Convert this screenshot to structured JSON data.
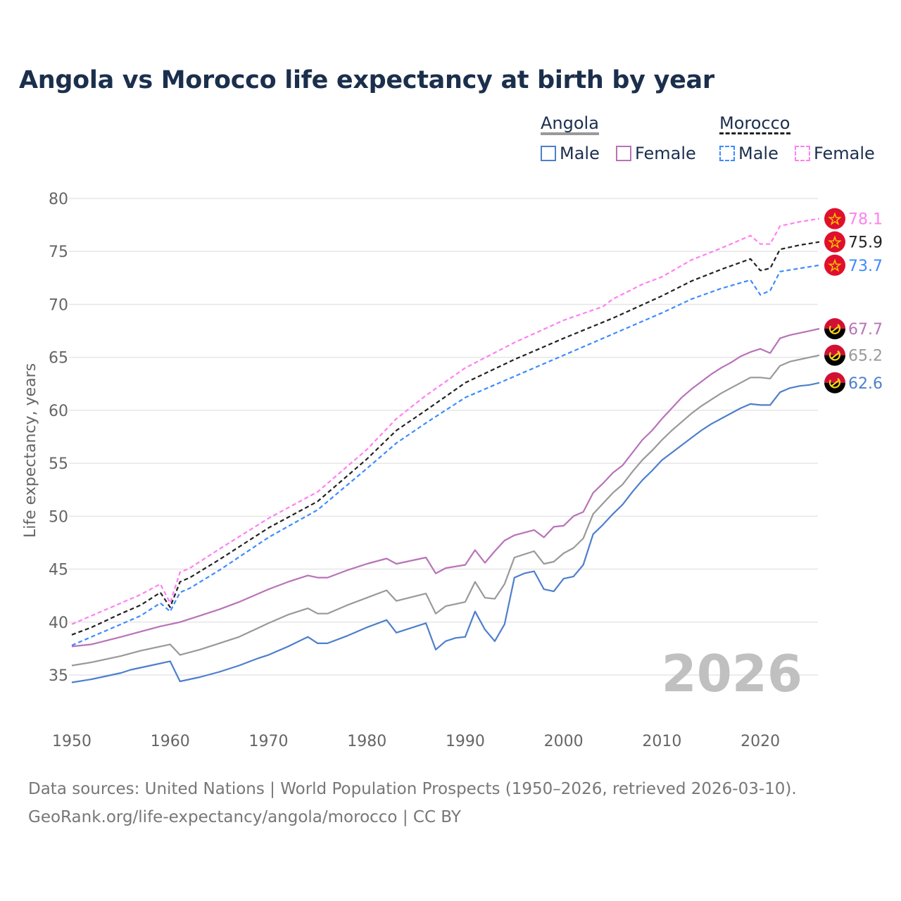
{
  "chart_data": {
    "type": "line",
    "title": "Angola vs Morocco life expectancy at birth by year",
    "xlabel": "",
    "ylabel": "Life expectancy, years",
    "xlim": [
      1950,
      2026
    ],
    "ylim": [
      32,
      82
    ],
    "xticks": [
      1950,
      1960,
      1970,
      1980,
      1990,
      2000,
      2010,
      2020
    ],
    "yticks": [
      35,
      40,
      45,
      50,
      55,
      60,
      65,
      70,
      75,
      80
    ],
    "grid": true,
    "year_watermark": "2026",
    "legend": {
      "groups": [
        {
          "country": "Angola",
          "items": [
            "Male",
            "Female"
          ]
        },
        {
          "country": "Morocco",
          "items": [
            "Male",
            "Female"
          ]
        }
      ],
      "placement": "top-right"
    },
    "series": [
      {
        "name": "Morocco Female",
        "country": "Morocco",
        "color": "#ff80f0",
        "dash": true,
        "end_label": "78.1",
        "flag": "morocco",
        "points": [
          [
            1950,
            39.8
          ],
          [
            1952,
            40.6
          ],
          [
            1955,
            41.8
          ],
          [
            1957,
            42.6
          ],
          [
            1959,
            43.6
          ],
          [
            1960,
            41.8
          ],
          [
            1961,
            44.7
          ],
          [
            1962,
            45.1
          ],
          [
            1965,
            46.9
          ],
          [
            1970,
            49.8
          ],
          [
            1975,
            52.3
          ],
          [
            1980,
            56.3
          ],
          [
            1983,
            59.2
          ],
          [
            1986,
            61.4
          ],
          [
            1990,
            64.0
          ],
          [
            1995,
            66.4
          ],
          [
            2000,
            68.5
          ],
          [
            2004,
            69.8
          ],
          [
            2005,
            70.5
          ],
          [
            2008,
            71.9
          ],
          [
            2010,
            72.6
          ],
          [
            2013,
            74.2
          ],
          [
            2016,
            75.3
          ],
          [
            2019,
            76.5
          ],
          [
            2020,
            75.7
          ],
          [
            2021,
            75.7
          ],
          [
            2022,
            77.4
          ],
          [
            2024,
            77.8
          ],
          [
            2026,
            78.1
          ]
        ]
      },
      {
        "name": "Morocco Total",
        "country": "Morocco",
        "color": "#222222",
        "dash": true,
        "end_label": "75.9",
        "flag": "morocco",
        "points": [
          [
            1950,
            38.8
          ],
          [
            1952,
            39.5
          ],
          [
            1955,
            40.8
          ],
          [
            1957,
            41.6
          ],
          [
            1959,
            42.8
          ],
          [
            1960,
            41.4
          ],
          [
            1961,
            43.8
          ],
          [
            1962,
            44.2
          ],
          [
            1965,
            45.9
          ],
          [
            1970,
            48.9
          ],
          [
            1975,
            51.4
          ],
          [
            1980,
            55.4
          ],
          [
            1983,
            58.1
          ],
          [
            1986,
            60.0
          ],
          [
            1990,
            62.6
          ],
          [
            1995,
            64.8
          ],
          [
            2000,
            66.8
          ],
          [
            2005,
            68.7
          ],
          [
            2010,
            70.8
          ],
          [
            2013,
            72.2
          ],
          [
            2016,
            73.3
          ],
          [
            2019,
            74.3
          ],
          [
            2020,
            73.2
          ],
          [
            2021,
            73.4
          ],
          [
            2022,
            75.2
          ],
          [
            2024,
            75.6
          ],
          [
            2026,
            75.9
          ]
        ]
      },
      {
        "name": "Morocco Male",
        "country": "Morocco",
        "color": "#3d8bff",
        "dash": true,
        "end_label": "73.7",
        "flag": "morocco",
        "points": [
          [
            1950,
            37.8
          ],
          [
            1952,
            38.6
          ],
          [
            1955,
            39.8
          ],
          [
            1957,
            40.6
          ],
          [
            1959,
            41.8
          ],
          [
            1960,
            41.0
          ],
          [
            1961,
            42.8
          ],
          [
            1962,
            43.2
          ],
          [
            1965,
            44.9
          ],
          [
            1970,
            48.0
          ],
          [
            1975,
            50.6
          ],
          [
            1980,
            54.5
          ],
          [
            1983,
            56.9
          ],
          [
            1986,
            58.8
          ],
          [
            1990,
            61.2
          ],
          [
            1995,
            63.2
          ],
          [
            2000,
            65.2
          ],
          [
            2005,
            67.2
          ],
          [
            2010,
            69.2
          ],
          [
            2013,
            70.5
          ],
          [
            2016,
            71.5
          ],
          [
            2019,
            72.3
          ],
          [
            2020,
            70.9
          ],
          [
            2021,
            71.3
          ],
          [
            2022,
            73.1
          ],
          [
            2024,
            73.4
          ],
          [
            2026,
            73.7
          ]
        ]
      },
      {
        "name": "Angola Female",
        "country": "Angola",
        "color": "#b873b8",
        "dash": false,
        "end_label": "67.7",
        "flag": "angola",
        "points": [
          [
            1950,
            37.7
          ],
          [
            1952,
            37.9
          ],
          [
            1955,
            38.6
          ],
          [
            1957,
            39.1
          ],
          [
            1959,
            39.6
          ],
          [
            1961,
            40.0
          ],
          [
            1963,
            40.6
          ],
          [
            1965,
            41.2
          ],
          [
            1967,
            41.9
          ],
          [
            1970,
            43.1
          ],
          [
            1972,
            43.8
          ],
          [
            1974,
            44.4
          ],
          [
            1975,
            44.2
          ],
          [
            1976,
            44.2
          ],
          [
            1978,
            44.9
          ],
          [
            1980,
            45.5
          ],
          [
            1982,
            46.0
          ],
          [
            1983,
            45.5
          ],
          [
            1986,
            46.1
          ],
          [
            1987,
            44.6
          ],
          [
            1988,
            45.1
          ],
          [
            1990,
            45.4
          ],
          [
            1991,
            46.8
          ],
          [
            1992,
            45.6
          ],
          [
            1993,
            46.7
          ],
          [
            1994,
            47.7
          ],
          [
            1995,
            48.2
          ],
          [
            1997,
            48.7
          ],
          [
            1998,
            48.0
          ],
          [
            1999,
            49.0
          ],
          [
            2000,
            49.1
          ],
          [
            2001,
            50.0
          ],
          [
            2002,
            50.4
          ],
          [
            2003,
            52.2
          ],
          [
            2004,
            53.1
          ],
          [
            2005,
            54.1
          ],
          [
            2006,
            54.8
          ],
          [
            2007,
            56.0
          ],
          [
            2008,
            57.2
          ],
          [
            2009,
            58.1
          ],
          [
            2010,
            59.2
          ],
          [
            2011,
            60.2
          ],
          [
            2012,
            61.2
          ],
          [
            2013,
            62.0
          ],
          [
            2014,
            62.7
          ],
          [
            2015,
            63.4
          ],
          [
            2016,
            64.0
          ],
          [
            2017,
            64.5
          ],
          [
            2018,
            65.1
          ],
          [
            2019,
            65.5
          ],
          [
            2020,
            65.8
          ],
          [
            2021,
            65.4
          ],
          [
            2022,
            66.8
          ],
          [
            2023,
            67.1
          ],
          [
            2024,
            67.3
          ],
          [
            2025,
            67.5
          ],
          [
            2026,
            67.7
          ]
        ]
      },
      {
        "name": "Angola Total",
        "country": "Angola",
        "color": "#999999",
        "dash": false,
        "end_label": "65.2",
        "flag": "angola",
        "points": [
          [
            1950,
            35.9
          ],
          [
            1952,
            36.2
          ],
          [
            1955,
            36.8
          ],
          [
            1957,
            37.3
          ],
          [
            1960,
            37.9
          ],
          [
            1961,
            36.9
          ],
          [
            1963,
            37.4
          ],
          [
            1965,
            38.0
          ],
          [
            1967,
            38.6
          ],
          [
            1970,
            39.9
          ],
          [
            1972,
            40.7
          ],
          [
            1974,
            41.3
          ],
          [
            1975,
            40.8
          ],
          [
            1976,
            40.8
          ],
          [
            1978,
            41.6
          ],
          [
            1980,
            42.3
          ],
          [
            1982,
            43.0
          ],
          [
            1983,
            42.0
          ],
          [
            1986,
            42.7
          ],
          [
            1987,
            40.8
          ],
          [
            1988,
            41.5
          ],
          [
            1990,
            41.9
          ],
          [
            1991,
            43.8
          ],
          [
            1992,
            42.3
          ],
          [
            1993,
            42.2
          ],
          [
            1994,
            43.6
          ],
          [
            1995,
            46.1
          ],
          [
            1997,
            46.7
          ],
          [
            1998,
            45.5
          ],
          [
            1999,
            45.7
          ],
          [
            2000,
            46.5
          ],
          [
            2001,
            47.0
          ],
          [
            2002,
            47.9
          ],
          [
            2003,
            50.2
          ],
          [
            2004,
            51.2
          ],
          [
            2005,
            52.2
          ],
          [
            2006,
            53.0
          ],
          [
            2007,
            54.2
          ],
          [
            2008,
            55.3
          ],
          [
            2009,
            56.2
          ],
          [
            2010,
            57.2
          ],
          [
            2011,
            58.1
          ],
          [
            2012,
            58.9
          ],
          [
            2013,
            59.7
          ],
          [
            2014,
            60.4
          ],
          [
            2015,
            61.0
          ],
          [
            2016,
            61.6
          ],
          [
            2017,
            62.1
          ],
          [
            2018,
            62.6
          ],
          [
            2019,
            63.1
          ],
          [
            2020,
            63.1
          ],
          [
            2021,
            63.0
          ],
          [
            2022,
            64.2
          ],
          [
            2023,
            64.6
          ],
          [
            2024,
            64.8
          ],
          [
            2025,
            65.0
          ],
          [
            2026,
            65.2
          ]
        ]
      },
      {
        "name": "Angola Male",
        "country": "Angola",
        "color": "#4d7fcc",
        "dash": false,
        "end_label": "62.6",
        "flag": "angola",
        "points": [
          [
            1950,
            34.3
          ],
          [
            1952,
            34.6
          ],
          [
            1954,
            35.0
          ],
          [
            1955,
            35.2
          ],
          [
            1956,
            35.5
          ],
          [
            1958,
            35.9
          ],
          [
            1960,
            36.3
          ],
          [
            1961,
            34.4
          ],
          [
            1963,
            34.8
          ],
          [
            1965,
            35.3
          ],
          [
            1967,
            35.9
          ],
          [
            1969,
            36.6
          ],
          [
            1970,
            36.9
          ],
          [
            1972,
            37.7
          ],
          [
            1974,
            38.6
          ],
          [
            1975,
            38.0
          ],
          [
            1976,
            38.0
          ],
          [
            1978,
            38.7
          ],
          [
            1980,
            39.5
          ],
          [
            1982,
            40.2
          ],
          [
            1983,
            39.0
          ],
          [
            1986,
            39.9
          ],
          [
            1987,
            37.4
          ],
          [
            1988,
            38.2
          ],
          [
            1989,
            38.5
          ],
          [
            1990,
            38.6
          ],
          [
            1991,
            41.0
          ],
          [
            1992,
            39.3
          ],
          [
            1993,
            38.2
          ],
          [
            1994,
            39.8
          ],
          [
            1995,
            44.2
          ],
          [
            1996,
            44.6
          ],
          [
            1997,
            44.8
          ],
          [
            1998,
            43.1
          ],
          [
            1999,
            42.9
          ],
          [
            2000,
            44.1
          ],
          [
            2001,
            44.3
          ],
          [
            2002,
            45.4
          ],
          [
            2003,
            48.3
          ],
          [
            2004,
            49.2
          ],
          [
            2005,
            50.2
          ],
          [
            2006,
            51.1
          ],
          [
            2007,
            52.3
          ],
          [
            2008,
            53.4
          ],
          [
            2009,
            54.3
          ],
          [
            2010,
            55.3
          ],
          [
            2011,
            56.0
          ],
          [
            2012,
            56.7
          ],
          [
            2013,
            57.4
          ],
          [
            2014,
            58.1
          ],
          [
            2015,
            58.7
          ],
          [
            2016,
            59.2
          ],
          [
            2017,
            59.7
          ],
          [
            2018,
            60.2
          ],
          [
            2019,
            60.6
          ],
          [
            2020,
            60.5
          ],
          [
            2021,
            60.5
          ],
          [
            2022,
            61.7
          ],
          [
            2023,
            62.1
          ],
          [
            2024,
            62.3
          ],
          [
            2025,
            62.4
          ],
          [
            2026,
            62.6
          ]
        ]
      }
    ]
  },
  "footer": {
    "line1": "Data sources: United Nations | World Population Prospects (1950–2026, retrieved 2026-03-10).",
    "line2": "GeoRank.org/life-expectancy/angola/morocco | CC BY"
  }
}
